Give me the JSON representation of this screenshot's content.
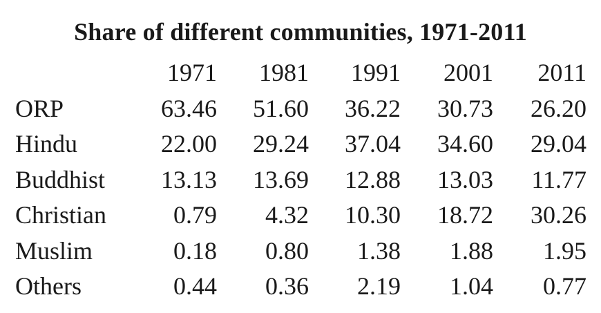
{
  "title": "Share of different communities, 1971-2011",
  "table": {
    "years": [
      "1971",
      "1981",
      "1991",
      "2001",
      "2011"
    ],
    "rows": [
      {
        "label": "ORP",
        "values": [
          "63.46",
          "51.60",
          "36.22",
          "30.73",
          "26.20"
        ]
      },
      {
        "label": "Hindu",
        "values": [
          "22.00",
          "29.24",
          "37.04",
          "34.60",
          "29.04"
        ]
      },
      {
        "label": "Buddhist",
        "values": [
          "13.13",
          "13.69",
          "12.88",
          "13.03",
          "11.77"
        ]
      },
      {
        "label": "Christian",
        "values": [
          "0.79",
          "4.32",
          "10.30",
          "18.72",
          "30.26"
        ]
      },
      {
        "label": "Muslim",
        "values": [
          "0.18",
          "0.80",
          "1.38",
          "1.88",
          "1.95"
        ]
      },
      {
        "label": "Others",
        "values": [
          "0.44",
          "0.36",
          "2.19",
          "1.04",
          "0.77"
        ]
      }
    ]
  }
}
